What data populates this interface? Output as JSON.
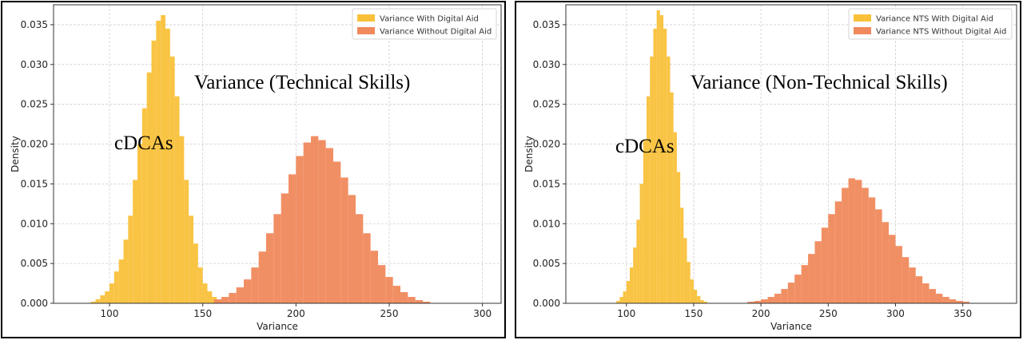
{
  "chart_data": [
    {
      "type": "histogram",
      "title": "Variance (Technical Skills)",
      "annotation": "cDCAs",
      "xlabel": "Variance",
      "ylabel": "Density",
      "xlim": [
        70,
        310
      ],
      "ylim": [
        0,
        0.0375
      ],
      "xticks": [
        100,
        150,
        200,
        250,
        300
      ],
      "yticks": [
        0.0,
        0.005,
        0.01,
        0.015,
        0.02,
        0.025,
        0.03,
        0.035
      ],
      "grid": true,
      "legend_position": "top-right",
      "series": [
        {
          "name": "Variance With Digital Aid",
          "color": "#f9c13a",
          "bin_width": 2.5,
          "bins": [
            [
              90,
              0.0002
            ],
            [
              92.5,
              0.0005
            ],
            [
              95,
              0.001
            ],
            [
              97.5,
              0.0015
            ],
            [
              100,
              0.0025
            ],
            [
              102.5,
              0.004
            ],
            [
              105,
              0.0055
            ],
            [
              107.5,
              0.008
            ],
            [
              110,
              0.011
            ],
            [
              112.5,
              0.0155
            ],
            [
              115,
              0.02
            ],
            [
              117.5,
              0.0245
            ],
            [
              120,
              0.029
            ],
            [
              122.5,
              0.033
            ],
            [
              125,
              0.0355
            ],
            [
              127.5,
              0.0362
            ],
            [
              130,
              0.0345
            ],
            [
              132.5,
              0.031
            ],
            [
              135,
              0.026
            ],
            [
              137.5,
              0.021
            ],
            [
              140,
              0.0155
            ],
            [
              142.5,
              0.011
            ],
            [
              145,
              0.0075
            ],
            [
              147.5,
              0.0045
            ],
            [
              150,
              0.0025
            ],
            [
              152.5,
              0.0015
            ],
            [
              155,
              0.0008
            ],
            [
              157.5,
              0.0004
            ]
          ]
        },
        {
          "name": "Variance Without Digital Aid",
          "color": "#f0895c",
          "bin_width": 4,
          "bins": [
            [
              156,
              0.0005
            ],
            [
              160,
              0.0008
            ],
            [
              164,
              0.0013
            ],
            [
              168,
              0.002
            ],
            [
              172,
              0.003
            ],
            [
              176,
              0.0045
            ],
            [
              180,
              0.0065
            ],
            [
              184,
              0.0088
            ],
            [
              188,
              0.0112
            ],
            [
              192,
              0.0138
            ],
            [
              196,
              0.0162
            ],
            [
              200,
              0.0185
            ],
            [
              204,
              0.0202
            ],
            [
              208,
              0.021
            ],
            [
              212,
              0.0205
            ],
            [
              216,
              0.0195
            ],
            [
              220,
              0.0178
            ],
            [
              224,
              0.0158
            ],
            [
              228,
              0.0136
            ],
            [
              232,
              0.0112
            ],
            [
              236,
              0.0088
            ],
            [
              240,
              0.0066
            ],
            [
              244,
              0.0048
            ],
            [
              248,
              0.0033
            ],
            [
              252,
              0.0022
            ],
            [
              256,
              0.0014
            ],
            [
              260,
              0.0008
            ],
            [
              264,
              0.0004
            ],
            [
              268,
              0.0002
            ]
          ]
        }
      ]
    },
    {
      "type": "histogram",
      "title": "Variance (Non-Technical Skills)",
      "annotation": "cDCAs",
      "xlabel": "Variance",
      "ylabel": "Density",
      "xlim": [
        55,
        390
      ],
      "ylim": [
        0,
        0.0375
      ],
      "xticks": [
        100,
        150,
        200,
        250,
        300,
        350
      ],
      "yticks": [
        0.0,
        0.005,
        0.01,
        0.015,
        0.02,
        0.025,
        0.03,
        0.035
      ],
      "grid": true,
      "legend_position": "top-right",
      "series": [
        {
          "name": "Variance NTS With Digital Aid",
          "color": "#f9c13a",
          "bin_width": 2.5,
          "bins": [
            [
              92.5,
              0.0003
            ],
            [
              95,
              0.0008
            ],
            [
              97.5,
              0.0015
            ],
            [
              100,
              0.0028
            ],
            [
              102.5,
              0.0045
            ],
            [
              105,
              0.007
            ],
            [
              107.5,
              0.0105
            ],
            [
              110,
              0.015
            ],
            [
              112.5,
              0.0205
            ],
            [
              115,
              0.026
            ],
            [
              117.5,
              0.031
            ],
            [
              120,
              0.0345
            ],
            [
              122.5,
              0.0368
            ],
            [
              125,
              0.0362
            ],
            [
              127.5,
              0.0345
            ],
            [
              130,
              0.031
            ],
            [
              132.5,
              0.0265
            ],
            [
              135,
              0.0215
            ],
            [
              137.5,
              0.0165
            ],
            [
              140,
              0.012
            ],
            [
              142.5,
              0.0082
            ],
            [
              145,
              0.0052
            ],
            [
              147.5,
              0.003
            ],
            [
              150,
              0.0017
            ],
            [
              152.5,
              0.0009
            ],
            [
              155,
              0.0004
            ],
            [
              157.5,
              0.0002
            ]
          ]
        },
        {
          "name": "Variance NTS Without Digital Aid",
          "color": "#f0895c",
          "bin_width": 5,
          "bins": [
            [
              190,
              0.0002
            ],
            [
              195,
              0.0003
            ],
            [
              200,
              0.0005
            ],
            [
              205,
              0.0008
            ],
            [
              210,
              0.0012
            ],
            [
              215,
              0.0018
            ],
            [
              220,
              0.0026
            ],
            [
              225,
              0.0036
            ],
            [
              230,
              0.0048
            ],
            [
              235,
              0.0062
            ],
            [
              240,
              0.0078
            ],
            [
              245,
              0.0095
            ],
            [
              250,
              0.0112
            ],
            [
              255,
              0.0128
            ],
            [
              260,
              0.0145
            ],
            [
              265,
              0.0157
            ],
            [
              270,
              0.0155
            ],
            [
              275,
              0.0145
            ],
            [
              280,
              0.0133
            ],
            [
              285,
              0.0118
            ],
            [
              290,
              0.0102
            ],
            [
              295,
              0.0086
            ],
            [
              300,
              0.0072
            ],
            [
              305,
              0.0058
            ],
            [
              310,
              0.0045
            ],
            [
              315,
              0.0034
            ],
            [
              320,
              0.0025
            ],
            [
              325,
              0.0018
            ],
            [
              330,
              0.0012
            ],
            [
              335,
              0.0008
            ],
            [
              340,
              0.0005
            ],
            [
              345,
              0.0003
            ],
            [
              350,
              0.0002
            ]
          ]
        }
      ]
    }
  ]
}
